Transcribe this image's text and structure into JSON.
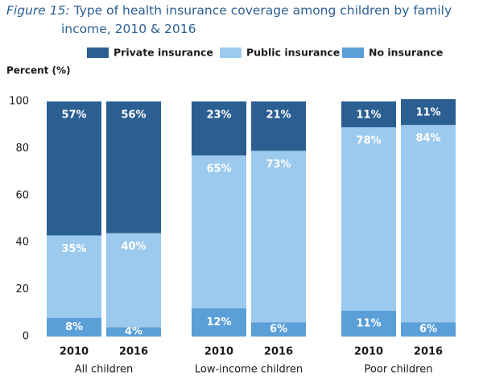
{
  "chart_data": {
    "type": "stacked_bar",
    "title_label": "Figure 15:",
    "title": "Type of health insurance coverage among children by family income, 2010 & 2016",
    "y_label": "Percent (%)",
    "categories": [
      "2010",
      "2016",
      "2010",
      "2016",
      "2010",
      "2016"
    ],
    "groups": [
      "All children",
      "Low-income children",
      "Poor children"
    ],
    "series": [
      {
        "name": "Private insurance",
        "color": "#2b5f92",
        "values": [
          57,
          56,
          23,
          21,
          11,
          11
        ],
        "value_labels": [
          "57%",
          "56%",
          "23%",
          "21%",
          "11%",
          "11%"
        ]
      },
      {
        "name": "Public insurance",
        "color": "#9ccaee",
        "values": [
          35,
          40,
          65,
          73,
          78,
          84
        ],
        "value_labels": [
          "35%",
          "40%",
          "65%",
          "73%",
          "78%",
          "84%"
        ]
      },
      {
        "name": "No insurance",
        "color": "#5a9fd8",
        "values": [
          8,
          4,
          12,
          6,
          11,
          6
        ],
        "value_labels": [
          "8%",
          "4%",
          "12%",
          "6%",
          "11%",
          "6%"
        ]
      }
    ],
    "ylim": [
      0,
      100
    ],
    "yticks": [
      0,
      20,
      40,
      60,
      80,
      100
    ],
    "grid": false,
    "legend": "top"
  }
}
